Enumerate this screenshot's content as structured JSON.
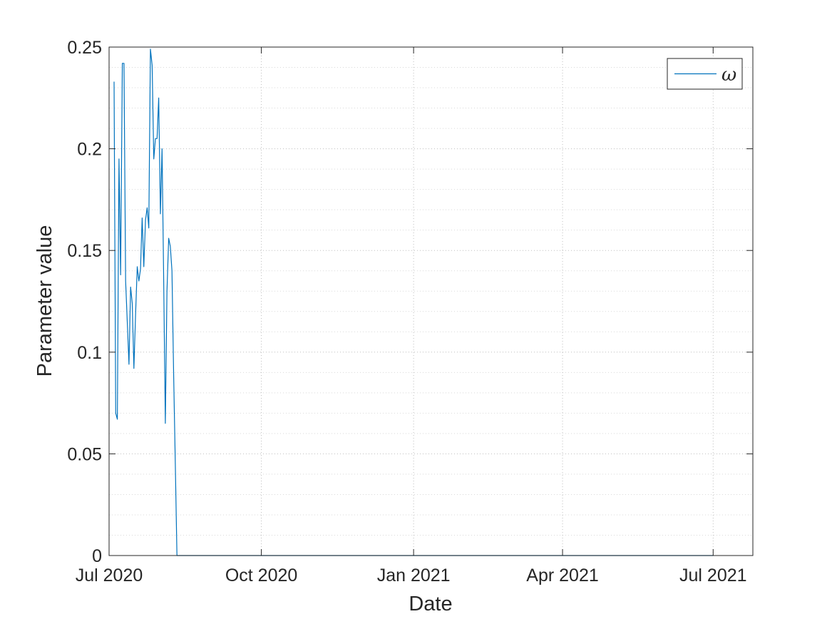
{
  "chart_data": {
    "type": "line",
    "title": "",
    "xlabel": "Date",
    "ylabel": "Parameter value",
    "xlim": [
      "2020-07-01",
      "2021-07-25"
    ],
    "ylim": [
      0,
      0.25
    ],
    "x_ticks": [
      {
        "date": "2020-07-01",
        "label": "Jul 2020"
      },
      {
        "date": "2020-10-01",
        "label": "Oct 2020"
      },
      {
        "date": "2021-01-01",
        "label": "Jan 2021"
      },
      {
        "date": "2021-04-01",
        "label": "Apr 2021"
      },
      {
        "date": "2021-07-01",
        "label": "Jul 2021"
      }
    ],
    "y_ticks": [
      {
        "value": 0,
        "label": "0"
      },
      {
        "value": 0.05,
        "label": "0.05"
      },
      {
        "value": 0.1,
        "label": "0.1"
      },
      {
        "value": 0.15,
        "label": "0.15"
      },
      {
        "value": 0.2,
        "label": "0.2"
      },
      {
        "value": 0.25,
        "label": "0.25"
      }
    ],
    "grid": true,
    "minor_grid": true,
    "legend_position": "top-right",
    "series": [
      {
        "name": "ω",
        "color": "#0072BD",
        "x": [
          "2020-07-04",
          "2020-07-05",
          "2020-07-06",
          "2020-07-07",
          "2020-07-08",
          "2020-07-09",
          "2020-07-10",
          "2020-07-11",
          "2020-07-12",
          "2020-07-13",
          "2020-07-14",
          "2020-07-15",
          "2020-07-16",
          "2020-07-17",
          "2020-07-18",
          "2020-07-19",
          "2020-07-20",
          "2020-07-21",
          "2020-07-22",
          "2020-07-23",
          "2020-07-24",
          "2020-07-25",
          "2020-07-26",
          "2020-07-27",
          "2020-07-28",
          "2020-07-29",
          "2020-07-30",
          "2020-07-31",
          "2020-08-01",
          "2020-08-02",
          "2020-08-03",
          "2020-08-04",
          "2020-08-05",
          "2020-08-06",
          "2020-08-07",
          "2020-08-08",
          "2020-08-09",
          "2020-08-10",
          "2020-08-11",
          "2020-08-12",
          "2020-08-13",
          "2020-08-14",
          "2020-08-15",
          "2020-08-16",
          "2021-07-01"
        ],
        "y": [
          0.233,
          0.07,
          0.067,
          0.195,
          0.138,
          0.242,
          0.242,
          0.135,
          0.115,
          0.094,
          0.132,
          0.124,
          0.092,
          0.118,
          0.142,
          0.135,
          0.141,
          0.166,
          0.142,
          0.165,
          0.171,
          0.161,
          0.249,
          0.241,
          0.195,
          0.205,
          0.205,
          0.225,
          0.168,
          0.2,
          0.135,
          0.065,
          0.13,
          0.156,
          0.152,
          0.14,
          0.09,
          0.045,
          0.0,
          0.0,
          0.0,
          0.0,
          0.0,
          0.0,
          0.0
        ]
      }
    ]
  }
}
